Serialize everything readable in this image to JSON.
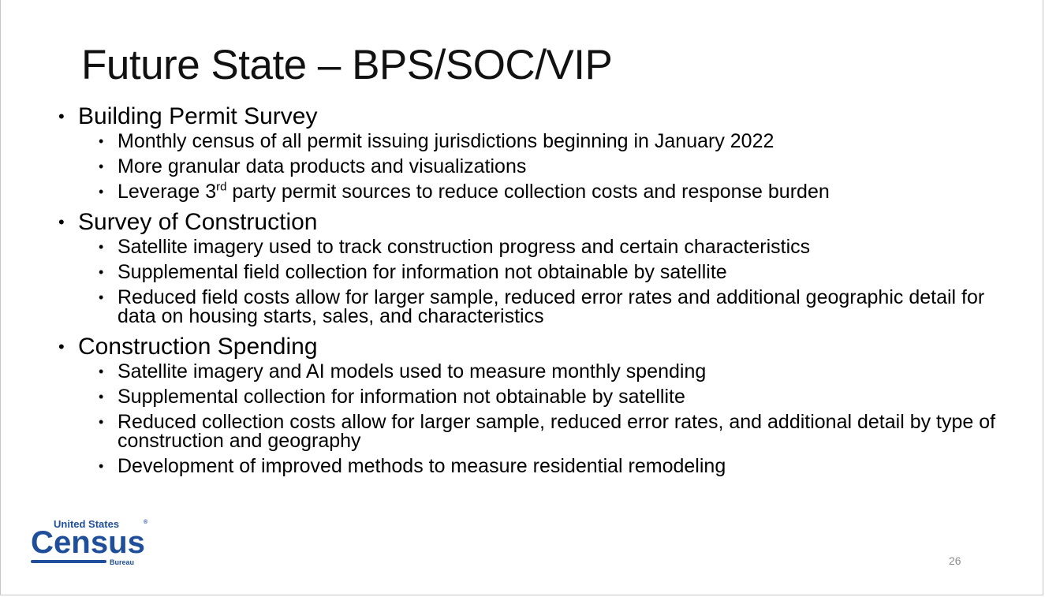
{
  "slide": {
    "title": "Future State – BPS/SOC/VIP",
    "page_number": "26"
  },
  "logo": {
    "top_text": "United States",
    "registered": "®",
    "main_text": "Census",
    "bottom_text": "Bureau",
    "color": "#1f4f9b"
  },
  "sections": [
    {
      "heading": "Building Permit Survey",
      "items": [
        "Monthly census of all permit issuing jurisdictions beginning in January 2022",
        "More granular data products and visualizations"
      ],
      "item3": {
        "pre": "Leverage 3",
        "sup": "rd",
        "post": " party permit sources to reduce collection costs and response burden"
      }
    },
    {
      "heading": "Survey of Construction",
      "items": [
        "Satellite imagery used to track construction progress and certain characteristics",
        "Supplemental field collection for information not obtainable by satellite",
        "Reduced field costs allow for larger sample, reduced error rates and additional geographic detail for data on housing starts, sales, and characteristics"
      ]
    },
    {
      "heading": "Construction Spending",
      "items": [
        "Satellite imagery and AI models used to measure monthly spending",
        "Supplemental collection for information not obtainable by satellite",
        "Reduced collection costs allow for larger sample, reduced error rates, and additional detail by type of construction and geography",
        "Development of improved methods to measure residential remodeling"
      ]
    }
  ],
  "bullet_char": "•"
}
